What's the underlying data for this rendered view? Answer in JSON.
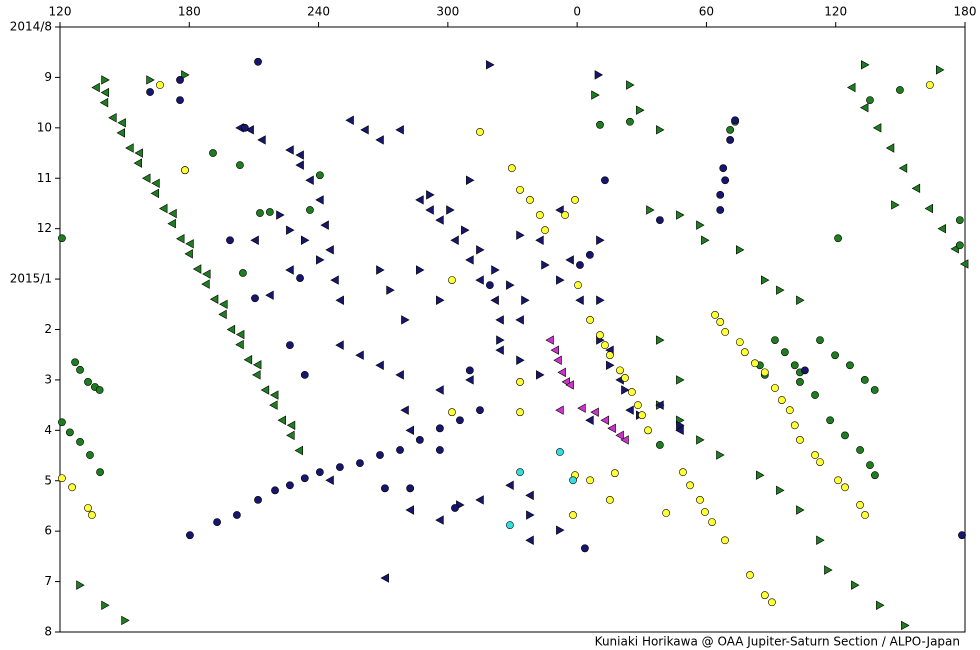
{
  "chart_data": {
    "type": "scatter",
    "credit": "Kuniaki Horikawa @ OAA Jupiter-Saturn Section / ALPO-Japan",
    "xlim": [
      120,
      540
    ],
    "ylim": [
      12,
      0
    ],
    "xticks": [
      120,
      180,
      240,
      300,
      {
        "value": 360,
        "label": "0"
      },
      {
        "value": 420,
        "label": "60"
      },
      {
        "value": 480,
        "label": "120"
      },
      {
        "value": 540,
        "label": "180"
      }
    ],
    "yticks": [
      {
        "value": 0,
        "label": "2014/8"
      },
      {
        "value": 1,
        "label": "9"
      },
      {
        "value": 2,
        "label": "10"
      },
      {
        "value": 3,
        "label": "11"
      },
      {
        "value": 4,
        "label": "12"
      },
      {
        "value": 5,
        "label": "2015/1"
      },
      {
        "value": 6,
        "label": "2"
      },
      {
        "value": 7,
        "label": "3"
      },
      {
        "value": 8,
        "label": "4"
      },
      {
        "value": 9,
        "label": "5"
      },
      {
        "value": 10,
        "label": "6"
      },
      {
        "value": 11,
        "label": "7"
      },
      {
        "value": 12,
        "label": "8"
      }
    ],
    "series": [
      {
        "color": "#1e7d1e",
        "marker": "triangle-left",
        "x": [
          136.7,
          140.6,
          144.5,
          148.4,
          152.4,
          156.3,
          160.2,
          164.2,
          168.1,
          172.0,
          176.0,
          179.9,
          183.8,
          187.7,
          191.7,
          195.6,
          199.5,
          203.5,
          207.4,
          211.3,
          215.3,
          219.2,
          223.1,
          227.1,
          231.0,
          487.4,
          493.4,
          499.4,
          505.4,
          511.4,
          517.4,
          523.4,
          529.4,
          535.4,
          539.8,
          141.0,
          148.8,
          156.7,
          164.5,
          172.4,
          180.3,
          188.1,
          196.0,
          203.8,
          211.7,
          219.6,
          227.4
        ],
        "values": [
          1.2,
          1.5,
          1.8,
          2.1,
          2.4,
          2.7,
          3.0,
          3.3,
          3.6,
          3.9,
          4.2,
          4.5,
          4.8,
          5.1,
          5.4,
          5.7,
          6.0,
          6.3,
          6.6,
          6.9,
          7.2,
          7.5,
          7.8,
          8.1,
          8.4,
          1.2,
          1.6,
          2.0,
          2.4,
          2.8,
          3.2,
          3.6,
          4.0,
          4.4,
          4.7,
          1.3,
          1.9,
          2.5,
          3.1,
          3.7,
          4.3,
          4.9,
          5.5,
          6.1,
          6.7,
          7.3,
          7.9
        ]
      },
      {
        "color": "#1e7d1e",
        "marker": "triangle-right",
        "x": [
          368.3,
          384.5,
          389.1,
          398.4,
          393.8,
          407.7,
          417,
          419.3,
          435.5,
          447.1,
          454.1,
          463.4,
          398.4,
          407.7,
          398.4,
          407.7,
          417,
          426.3,
          444.8,
          454.1,
          463.4,
          472.7,
          476.4,
          488.9,
          500.5,
          512.1,
          161.8,
          178,
          140.9,
          507.5,
          493.5,
          528.3,
          150.2,
          140.9,
          129.3
        ],
        "values": [
          1.35,
          1.15,
          1.65,
          2.04,
          3.63,
          3.73,
          3.93,
          4.23,
          4.42,
          5.02,
          5.22,
          5.42,
          6.21,
          7.0,
          7.5,
          7.8,
          8.19,
          8.49,
          8.89,
          9.19,
          9.58,
          10.18,
          10.77,
          11.07,
          11.47,
          11.87,
          1.05,
          0.95,
          1.05,
          3.53,
          0.75,
          0.85,
          11.77,
          11.47,
          11.07
        ]
      },
      {
        "color": "#1e7d1e",
        "marker": "circle",
        "x": [
          127,
          129.3,
          133,
          136.2,
          138.4,
          120.9,
          124.6,
          129.3,
          133.9,
          138.6,
          120.9,
          178,
          191,
          203.5,
          212.8,
          204.9,
          217.4,
          236,
          240.6,
          370.6,
          384.5,
          433.3,
          431,
          481.1,
          451.8,
          456.4,
          461,
          463.4,
          472.7,
          479.7,
          486.6,
          493.5,
          498.1,
          463.4,
          470.4,
          477.4,
          484.3,
          491.3,
          495.9,
          498.2,
          444.8,
          447.1,
          398.4,
          537.6,
          537.6,
          509.8,
          495.9
        ],
        "values": [
          6.65,
          6.8,
          7.04,
          7.14,
          7.2,
          7.84,
          8.04,
          8.23,
          8.49,
          8.83,
          4.19,
          2.84,
          2.5,
          2.74,
          3.69,
          4.88,
          3.67,
          3.63,
          2.94,
          1.94,
          1.88,
          1.88,
          2.04,
          4.19,
          6.21,
          6.45,
          6.71,
          6.85,
          6.21,
          6.51,
          6.71,
          7.0,
          7.2,
          7.04,
          7.3,
          7.8,
          8.1,
          8.39,
          8.69,
          8.89,
          6.71,
          6.9,
          8.29,
          3.83,
          4.33,
          1.25,
          1.45
        ]
      },
      {
        "color": "#16166e",
        "marker": "triangle-left",
        "x": [
          208.2,
          213.7,
          226.7,
          231.4,
          236,
          240.6,
          243,
          245.3,
          247.6,
          250,
          254.6,
          261.5,
          268.5,
          277.8,
          287,
          291.7,
          296.3,
          303.3,
          310.2,
          314.9,
          321.9,
          324.2,
          249.9,
          259.2,
          268.5,
          277.8,
          280.1,
          282.5,
          296.3,
          310.2,
          324.2,
          333.5,
          342.7,
          352,
          356.7,
          361.3,
          375.2,
          379.9,
          384.5,
          398.4,
          407.7,
          365.9,
          338.1,
          314.9,
          296.3,
          282.5,
          270.9,
          328.8,
          338.1,
          217.4,
          210.5,
          203.5,
          245.3,
          226.7,
          231.4
        ],
        "values": [
          2.04,
          2.24,
          2.44,
          2.74,
          3.04,
          3.43,
          3.93,
          4.42,
          5.02,
          5.42,
          1.85,
          2.04,
          2.24,
          2.04,
          3.43,
          3.63,
          3.83,
          4.23,
          4.62,
          5.02,
          5.42,
          5.81,
          6.31,
          6.51,
          6.71,
          6.9,
          7.6,
          8.0,
          7.2,
          7.0,
          6.41,
          5.81,
          4.23,
          3.63,
          4.62,
          5.42,
          6.41,
          7.0,
          7.6,
          7.5,
          8.0,
          7.8,
          9.29,
          9.38,
          9.78,
          9.58,
          10.93,
          9.09,
          10.18,
          5.32,
          4.23,
          2.0,
          8.99,
          4.82,
          2.54
        ]
      },
      {
        "color": "#16166e",
        "marker": "triangle-right",
        "x": [
          291.7,
          301,
          307.9,
          314.9,
          321.9,
          328.8,
          335.8,
          268.5,
          273.2,
          280.1,
          287,
          296.3,
          324.2,
          333.5,
          342.7,
          370.6,
          375.2,
          382.2,
          389.1,
          407.7,
          370.6,
          352,
          345.1,
          222.1,
          226.7,
          233.6,
          240.6,
          369.9,
          319.5,
          338.1,
          305.6,
          370.6,
          310.2,
          333.5,
          352
        ],
        "values": [
          3.33,
          3.63,
          4.03,
          4.42,
          4.82,
          5.12,
          5.42,
          4.82,
          5.22,
          5.81,
          4.82,
          5.42,
          6.21,
          6.61,
          6.9,
          6.21,
          6.71,
          7.2,
          7.7,
          7.9,
          5.42,
          5.02,
          4.72,
          3.73,
          4.03,
          4.23,
          4.62,
          0.95,
          0.75,
          9.68,
          9.48,
          4.23,
          3.04,
          4.13,
          9.98
        ]
      },
      {
        "color": "#16166e",
        "marker": "circle",
        "x": [
          180.3,
          192.9,
          202.1,
          211.9,
          219.8,
          226.7,
          233.6,
          240.6,
          249.9,
          259.2,
          268.5,
          277.8,
          287,
          296.3,
          305.6,
          314.9,
          211.9,
          175.7,
          175.7,
          161.8,
          205.8,
          198.9,
          210.5,
          226.7,
          233.6,
          231.4,
          270.8,
          282.5,
          296.3,
          303.3,
          319.5,
          433.3,
          431,
          427.8,
          428.7,
          426.4,
          426.4,
          372.9,
          361.3,
          365.9,
          398.4,
          363.6,
          538.6,
          465.7,
          310.2
        ],
        "values": [
          10.08,
          9.82,
          9.68,
          9.38,
          9.19,
          9.09,
          8.95,
          8.83,
          8.73,
          8.65,
          8.49,
          8.39,
          8.19,
          7.96,
          7.8,
          7.6,
          0.69,
          1.05,
          1.45,
          1.29,
          2.0,
          4.23,
          5.38,
          6.31,
          6.9,
          4.98,
          9.15,
          9.15,
          8.39,
          9.54,
          5.12,
          1.85,
          2.24,
          2.8,
          3.04,
          3.33,
          3.63,
          3.04,
          4.72,
          4.52,
          3.83,
          10.34,
          10.08,
          6.81,
          6.81
        ]
      },
      {
        "color": "#ffff33",
        "marker": "circle",
        "x": [
          366,
          370.6,
          372.9,
          375.2,
          379.9,
          382.2,
          385.4,
          388.2,
          390.1,
          392.9,
          360.4,
          333.5,
          338.1,
          342.7,
          345.1,
          359,
          354.4,
          424,
          426.4,
          428.7,
          435.5,
          437.8,
          442.5,
          447.1,
          451.8,
          455,
          458.7,
          461,
          463.4,
          470.4,
          472.7,
          409.1,
          412.4,
          417,
          419.3,
          422.6,
          428.6,
          401.3,
          481.1,
          484.3,
          491.3,
          493.6,
          440.2,
          447.1,
          450.4,
          120.9,
          125.6,
          133,
          134.8,
          166.4,
          178,
          314.9,
          329.7,
          301.9,
          333.5,
          333.5,
          301.9,
          358.1,
          359,
          366,
          377.5,
          375.2,
          523.7
        ],
        "values": [
          5.81,
          6.11,
          6.31,
          6.51,
          6.81,
          6.96,
          7.24,
          7.5,
          7.7,
          8.0,
          5.12,
          3.23,
          3.43,
          3.73,
          4.03,
          3.43,
          3.73,
          5.71,
          5.85,
          6.05,
          6.25,
          6.45,
          6.67,
          6.85,
          7.16,
          7.4,
          7.6,
          7.9,
          8.19,
          8.49,
          8.63,
          8.83,
          9.09,
          9.38,
          9.62,
          9.82,
          10.18,
          9.64,
          8.99,
          9.13,
          9.48,
          9.68,
          10.87,
          11.27,
          11.41,
          8.95,
          9.13,
          9.54,
          9.68,
          1.15,
          2.84,
          2.08,
          2.8,
          5.02,
          7.04,
          7.64,
          7.64,
          9.68,
          8.89,
          8.99,
          8.85,
          9.38,
          1.15
        ]
      },
      {
        "color": "#cc33cc",
        "marker": "triangle-left",
        "x": [
          347.4,
          349.8,
          351.1,
          353,
          354.9,
          356.7,
          362.2,
          368.3,
          373,
          376.2,
          379.9,
          382.2,
          352
        ],
        "values": [
          6.21,
          6.41,
          6.61,
          6.85,
          7.04,
          7.1,
          7.56,
          7.64,
          7.8,
          7.96,
          8.1,
          8.19,
          7.6
        ]
      },
      {
        "color": "#33dddd",
        "marker": "circle",
        "x": [
          333.5,
          352,
          358.1,
          328.8
        ],
        "values": [
          8.83,
          8.43,
          8.99,
          9.88
        ]
      }
    ]
  }
}
